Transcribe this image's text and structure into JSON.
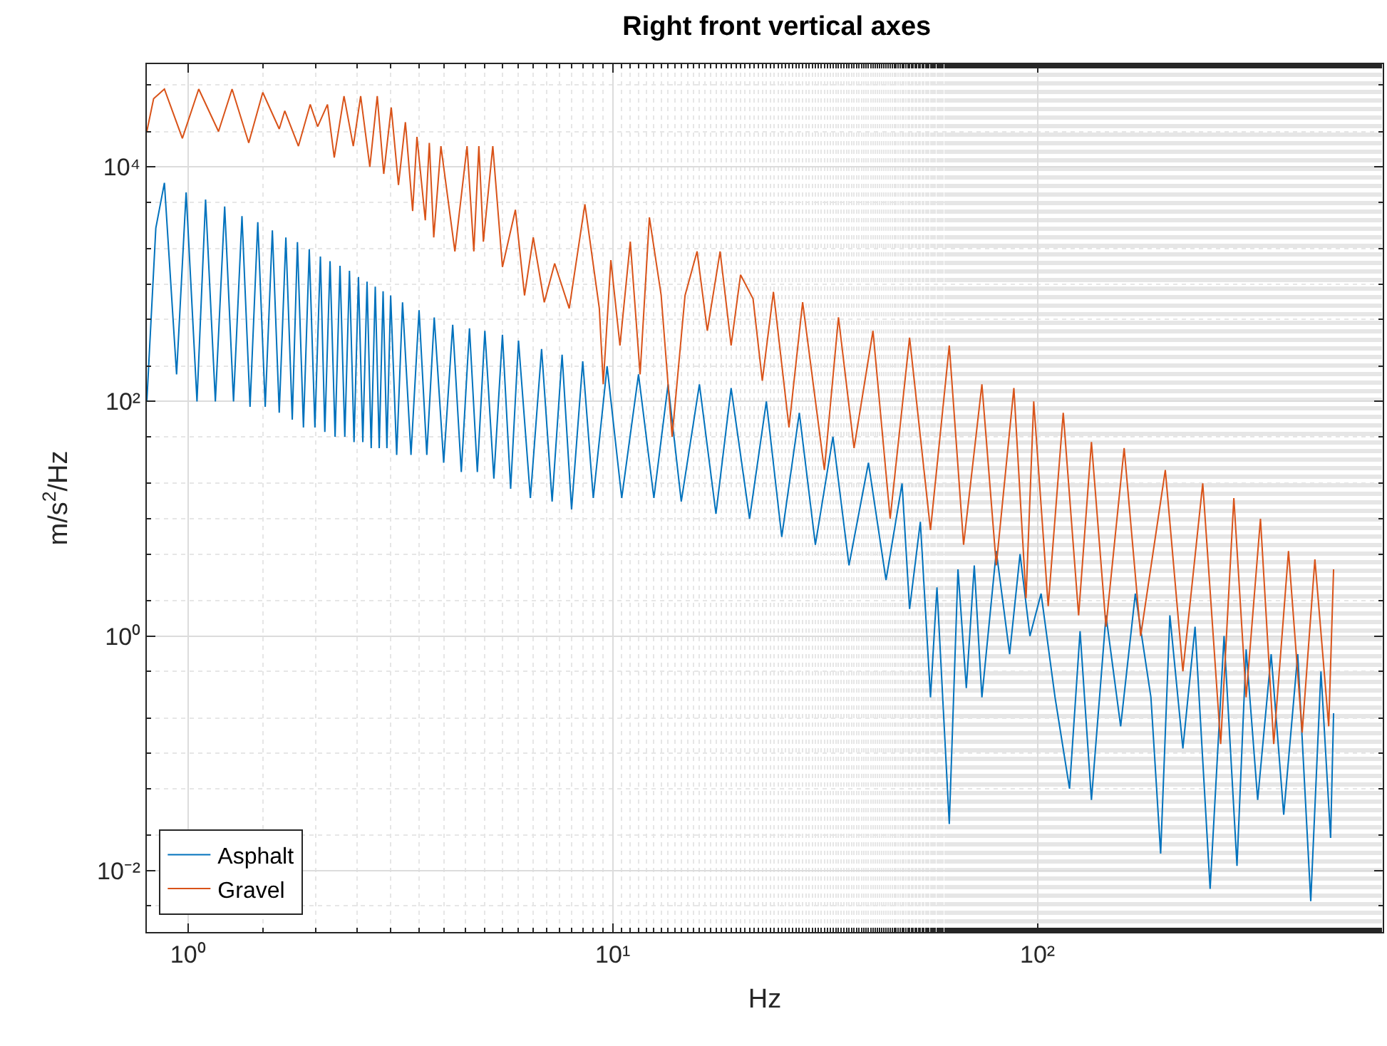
{
  "chart_data": {
    "type": "line",
    "title": "Right front vertical axes",
    "xlabel": "Hz",
    "ylabel": "m/s$^{2}$/Hz",
    "log": "xy",
    "grid": true,
    "legend": "bottom left",
    "marker": "none",
    "line_style": "solid",
    "xlim": [
      0.8,
      650
    ],
    "ylim": [
      0.003,
      75000
    ],
    "xticks": [
      {
        "value": 1,
        "label": "10⁰"
      },
      {
        "value": 10,
        "label": "10¹"
      },
      {
        "value": 100,
        "label": "10²"
      }
    ],
    "yticks": [
      {
        "value": 0.01,
        "label": "10⁻²"
      },
      {
        "value": 1,
        "label": "10⁰"
      },
      {
        "value": 100,
        "label": "10²"
      },
      {
        "value": 10000,
        "label": "10⁴"
      }
    ],
    "series": [
      {
        "name": "Asphalt",
        "color": "#0072bd",
        "x": [
          0.8,
          0.84,
          0.88,
          0.94,
          0.99,
          1.05,
          1.1,
          1.16,
          1.22,
          1.28,
          1.34,
          1.4,
          1.46,
          1.52,
          1.58,
          1.64,
          1.7,
          1.76,
          1.81,
          1.87,
          1.93,
          1.99,
          2.05,
          2.1,
          2.16,
          2.22,
          2.28,
          2.34,
          2.4,
          2.46,
          2.52,
          2.58,
          2.64,
          2.7,
          2.76,
          2.82,
          2.88,
          2.94,
          3.0,
          3.1,
          3.2,
          3.35,
          3.5,
          3.65,
          3.8,
          4.0,
          4.2,
          4.4,
          4.6,
          4.8,
          5.0,
          5.25,
          5.5,
          5.75,
          6.0,
          6.4,
          6.8,
          7.2,
          7.6,
          8.0,
          8.5,
          9.0,
          9.7,
          10.5,
          11.5,
          12.5,
          13.5,
          14.5,
          16,
          17.5,
          19,
          21,
          23,
          25,
          27.5,
          30,
          33,
          36,
          40,
          44,
          48,
          50,
          53,
          56,
          58,
          62,
          65,
          68,
          71,
          74,
          80,
          86,
          91,
          96,
          102,
          110,
          119,
          126,
          134,
          145,
          157,
          170,
          185,
          195,
          205,
          220,
          235,
          255,
          275,
          295,
          310,
          330,
          355,
          380,
          410,
          440,
          465,
          490,
          498
        ],
        "values": [
          100,
          3000,
          7300,
          170,
          6050,
          100,
          5260,
          100,
          4580,
          100,
          3800,
          90,
          3370,
          90,
          2870,
          80,
          2500,
          70,
          2280,
          60,
          1980,
          60,
          1720,
          55,
          1570,
          50,
          1430,
          50,
          1300,
          45,
          1150,
          45,
          1050,
          40,
          950,
          40,
          870,
          40,
          800,
          35,
          700,
          35,
          600,
          35,
          520,
          30,
          450,
          25,
          420,
          25,
          400,
          22,
          370,
          18,
          330,
          15,
          280,
          14,
          250,
          12,
          220,
          15,
          200,
          15,
          170,
          15,
          140,
          14,
          140,
          11,
          130,
          10,
          100,
          7,
          80,
          6,
          50,
          4,
          30,
          3,
          20,
          1.7,
          9.4,
          0.3,
          2.6,
          0.025,
          3.7,
          0.36,
          4,
          0.3,
          5.3,
          0.7,
          5,
          1.0,
          2.3,
          0.3,
          0.05,
          1.1,
          0.04,
          1.5,
          0.17,
          2.3,
          0.3,
          0.014,
          1.5,
          0.11,
          1.2,
          0.007,
          1.0,
          0.011,
          0.77,
          0.04,
          0.7,
          0.03,
          0.7,
          0.0055,
          0.5,
          0.019,
          0.22
        ]
      },
      {
        "name": "Gravel",
        "color": "#d95319",
        "x": [
          0.8,
          0.83,
          0.88,
          0.97,
          1.06,
          1.18,
          1.27,
          1.39,
          1.5,
          1.64,
          1.69,
          1.82,
          1.94,
          2.02,
          2.13,
          2.21,
          2.33,
          2.45,
          2.55,
          2.68,
          2.79,
          2.89,
          3.01,
          3.13,
          3.25,
          3.38,
          3.46,
          3.62,
          3.7,
          3.79,
          3.94,
          4.25,
          4.54,
          4.71,
          4.84,
          4.96,
          5.22,
          5.5,
          5.9,
          6.2,
          6.5,
          6.9,
          7.3,
          7.9,
          8.6,
          9.3,
          9.5,
          9.9,
          10.4,
          11,
          11.6,
          12.2,
          13,
          13.8,
          14.8,
          15.8,
          16.7,
          17.9,
          19,
          20,
          21.4,
          22.5,
          23.9,
          26,
          28,
          31.5,
          34,
          37,
          41,
          45,
          50,
          56,
          62,
          67,
          74,
          80,
          88,
          94,
          98,
          106,
          115,
          125,
          134,
          145,
          160,
          175,
          200,
          220,
          245,
          270,
          290,
          310,
          335,
          360,
          390,
          420,
          450,
          485,
          498
        ],
        "values": [
          20000,
          38000,
          46000,
          17500,
          46000,
          20000,
          46000,
          16000,
          43000,
          21000,
          30000,
          15000,
          34000,
          22000,
          34000,
          12000,
          40000,
          15000,
          40000,
          10000,
          40000,
          8700,
          32000,
          7000,
          24000,
          4200,
          18000,
          3500,
          16000,
          2500,
          15000,
          1900,
          15000,
          1900,
          15000,
          2300,
          15000,
          1400,
          4300,
          800,
          2500,
          700,
          1500,
          620,
          4800,
          620,
          140,
          1600,
          300,
          2300,
          170,
          3700,
          810,
          50,
          800,
          1900,
          400,
          1900,
          300,
          1200,
          750,
          150,
          860,
          60,
          700,
          26,
          520,
          40,
          400,
          10,
          350,
          8,
          300,
          6,
          140,
          4,
          130,
          2.1,
          100,
          1.8,
          80,
          1.5,
          45,
          1.2,
          40,
          1.0,
          26,
          0.5,
          20,
          0.12,
          15,
          0.3,
          10,
          0.12,
          5.3,
          0.15,
          4.5,
          0.17,
          3.7
        ]
      }
    ]
  }
}
